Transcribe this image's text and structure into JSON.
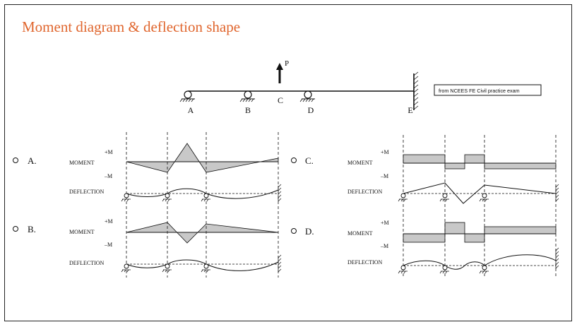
{
  "title": "Moment diagram & deflection shape",
  "note": "from NCEES FE Civil practice exam",
  "beam": {
    "load_label": "P",
    "points": [
      "A",
      "B",
      "C",
      "D",
      "E"
    ]
  },
  "options": [
    {
      "letter": "A.",
      "moment_label": "MOMENT",
      "plus_label": "+M",
      "minus_label": "–M",
      "deflection_label": "DEFLECTION"
    },
    {
      "letter": "B.",
      "moment_label": "MOMENT",
      "plus_label": "+M",
      "minus_label": "–M",
      "deflection_label": "DEFLECTION"
    },
    {
      "letter": "C.",
      "moment_label": "MOMENT",
      "plus_label": "+M",
      "minus_label": "–M",
      "deflection_label": "DEFLECTION"
    },
    {
      "letter": "D.",
      "moment_label": "MOMENT",
      "plus_label": "+M",
      "minus_label": "–M",
      "deflection_label": "DEFLECTION"
    }
  ]
}
